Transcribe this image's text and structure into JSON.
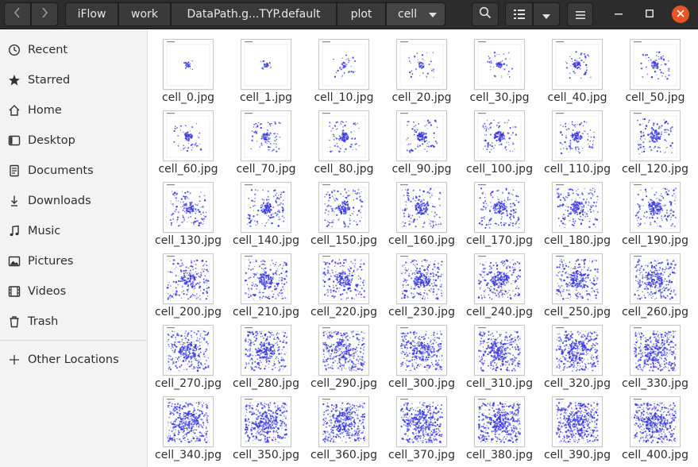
{
  "toolbar": {
    "back_icon": "chevron-left-icon",
    "forward_icon": "chevron-right-icon",
    "breadcrumbs": [
      "iFlow",
      "work",
      "DataPath.g...TYP.default",
      "plot",
      "cell"
    ],
    "search_icon": "search-icon",
    "view_icon": "list-view-icon",
    "menu_icon": "hamburger-menu-icon",
    "accent_close": "#e95420"
  },
  "sidebar": {
    "items": [
      {
        "label": "Recent",
        "icon": "clock-icon"
      },
      {
        "label": "Starred",
        "icon": "star-icon"
      },
      {
        "label": "Home",
        "icon": "home-icon"
      },
      {
        "label": "Desktop",
        "icon": "desktop-icon"
      },
      {
        "label": "Documents",
        "icon": "document-icon"
      },
      {
        "label": "Downloads",
        "icon": "download-icon"
      },
      {
        "label": "Music",
        "icon": "music-icon"
      },
      {
        "label": "Pictures",
        "icon": "picture-icon"
      },
      {
        "label": "Videos",
        "icon": "video-icon"
      },
      {
        "label": "Trash",
        "icon": "trash-icon"
      }
    ],
    "other_locations": {
      "label": "Other Locations",
      "icon": "plus-icon"
    }
  },
  "files": [
    "cell_0.jpg",
    "cell_1.jpg",
    "cell_10.jpg",
    "cell_20.jpg",
    "cell_30.jpg",
    "cell_40.jpg",
    "cell_50.jpg",
    "cell_60.jpg",
    "cell_70.jpg",
    "cell_80.jpg",
    "cell_90.jpg",
    "cell_100.jpg",
    "cell_110.jpg",
    "cell_120.jpg",
    "cell_130.jpg",
    "cell_140.jpg",
    "cell_150.jpg",
    "cell_160.jpg",
    "cell_170.jpg",
    "cell_180.jpg",
    "cell_190.jpg",
    "cell_200.jpg",
    "cell_210.jpg",
    "cell_220.jpg",
    "cell_230.jpg",
    "cell_240.jpg",
    "cell_250.jpg",
    "cell_260.jpg",
    "cell_270.jpg",
    "cell_280.jpg",
    "cell_290.jpg",
    "cell_300.jpg",
    "cell_310.jpg",
    "cell_320.jpg",
    "cell_330.jpg",
    "cell_340.jpg",
    "cell_350.jpg",
    "cell_360.jpg",
    "cell_370.jpg",
    "cell_380.jpg",
    "cell_390.jpg",
    "cell_400.jpg"
  ],
  "thumbnail_color": "#3a3adf"
}
